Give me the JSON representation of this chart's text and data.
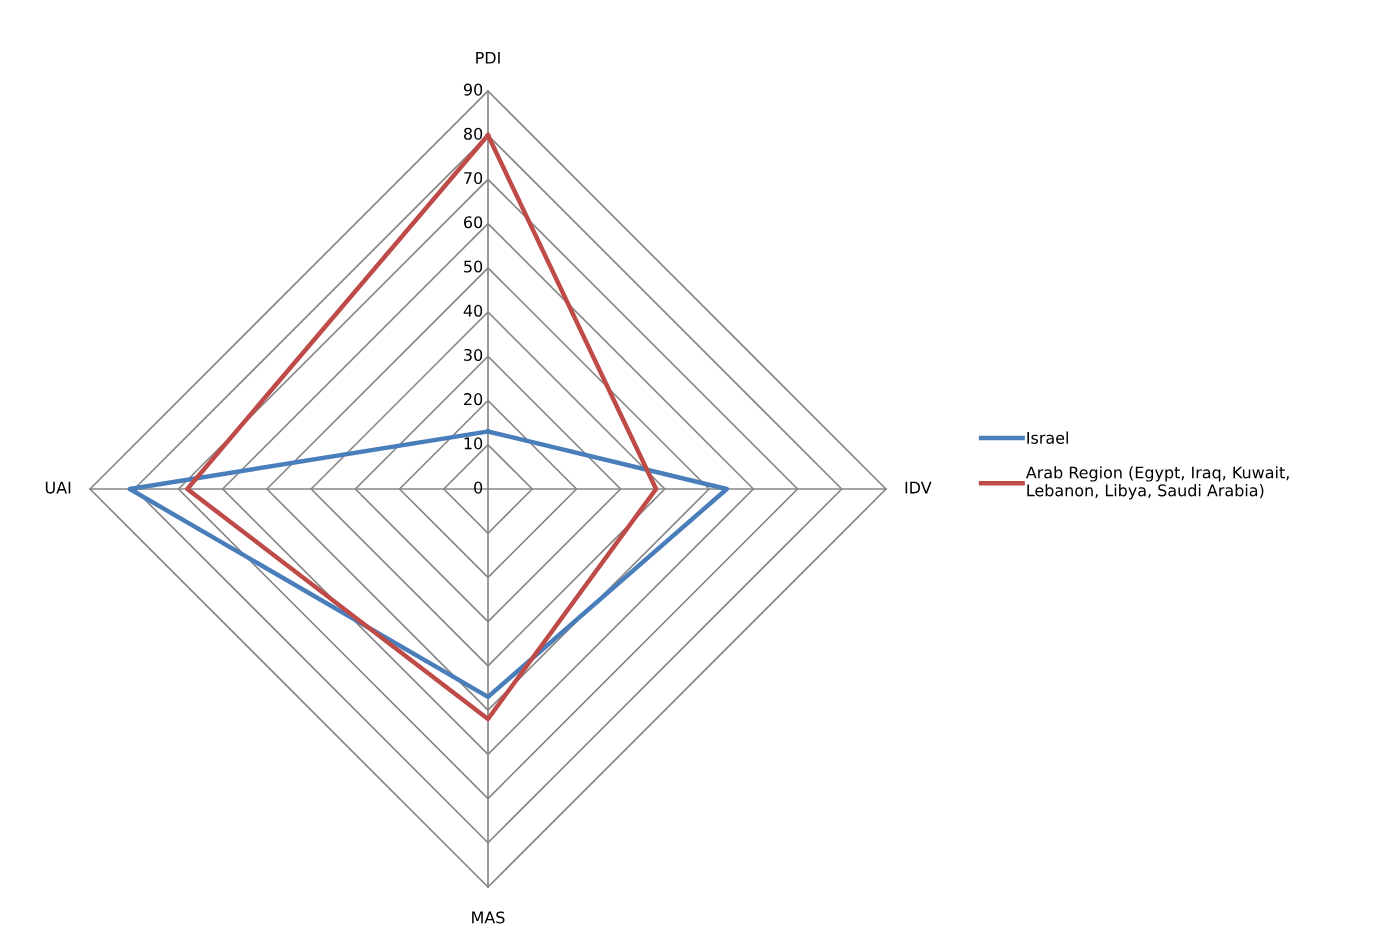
{
  "chart_data": {
    "type": "radar",
    "categories": [
      "PDI",
      "IDV",
      "MAS",
      "UAI"
    ],
    "series": [
      {
        "name": "Israel",
        "color": "#4a7ebb",
        "values": [
          13,
          54,
          47,
          81
        ]
      },
      {
        "name": "Arab Region (Egypt, Iraq, Kuwait,\nLebanon, Libya, Saudi Arabia)",
        "color": "#be4b48",
        "values": [
          80,
          38,
          52,
          68
        ]
      }
    ],
    "ylim": [
      0,
      90
    ],
    "yticks": [
      0,
      10,
      20,
      30,
      40,
      50,
      60,
      70,
      80,
      90
    ],
    "grid": true,
    "legend": "right",
    "marker": "none",
    "line_style": "solid"
  }
}
